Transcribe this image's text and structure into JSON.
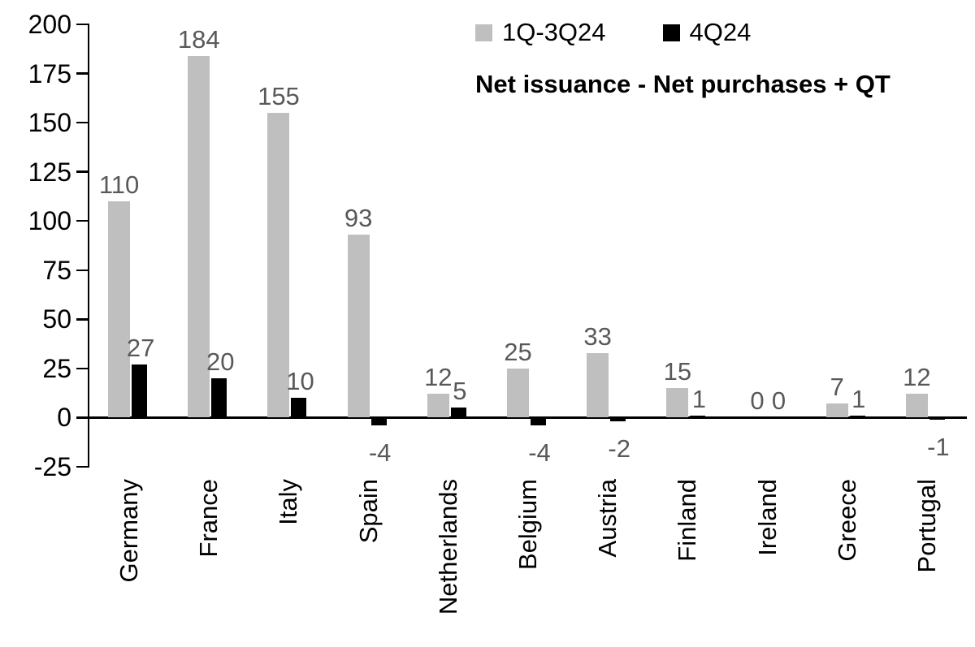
{
  "chart_data": {
    "type": "bar",
    "title": "Net issuance - Net purchases + QT",
    "categories": [
      "Germany",
      "France",
      "Italy",
      "Spain",
      "Netherlands",
      "Belgium",
      "Austria",
      "Finland",
      "Ireland",
      "Greece",
      "Portugal"
    ],
    "series": [
      {
        "name": "1Q-3Q24",
        "color": "#bfbfbf",
        "values": [
          110,
          184,
          155,
          93,
          12,
          25,
          33,
          15,
          0,
          7,
          12
        ]
      },
      {
        "name": "4Q24",
        "color": "#000000",
        "values": [
          27,
          20,
          10,
          -4,
          5,
          -4,
          -2,
          1,
          0,
          1,
          -1
        ]
      }
    ],
    "ylim": [
      -25,
      200
    ],
    "yticks": [
      -25,
      0,
      25,
      50,
      75,
      100,
      125,
      150,
      175,
      200
    ],
    "grid": false,
    "legend_position": "top",
    "label_color": "#595959",
    "axis_color": "#000000"
  }
}
